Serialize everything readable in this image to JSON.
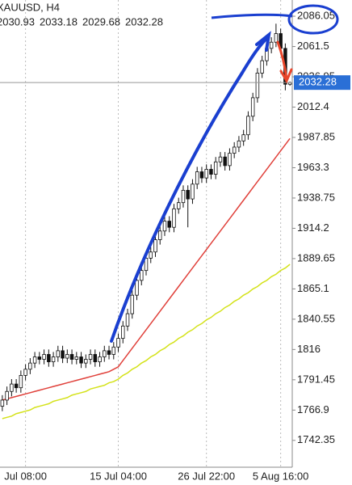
{
  "chart_data": {
    "type": "candlestick",
    "title": "XAUUSD, H4",
    "categories": [
      null,
      null,
      null,
      null,
      null,
      "Jul 08:00",
      null,
      null,
      null,
      null,
      null,
      null,
      null,
      null,
      null,
      null,
      null,
      null,
      null,
      null,
      null,
      null,
      null,
      null,
      null,
      "15 Jul 04:00",
      null,
      null,
      null,
      null,
      null,
      null,
      null,
      null,
      null,
      null,
      null,
      null,
      null,
      null,
      null,
      null,
      null,
      null,
      "26 Jul 22:00",
      null,
      null,
      null,
      null,
      null,
      null,
      null,
      null,
      null,
      null,
      null,
      null,
      null,
      null,
      null,
      "5 Aug 16:00",
      null,
      null
    ],
    "open": [
      1770,
      1775,
      1782,
      1788,
      1785,
      1795,
      1800,
      1805,
      1810,
      1808,
      1812,
      1806,
      1810,
      1815,
      1809,
      1812,
      1808,
      1810,
      1805,
      1808,
      1812,
      1806,
      1810,
      1815,
      1812,
      1818,
      1825,
      1835,
      1845,
      1860,
      1872,
      1880,
      1890,
      1895,
      1905,
      1912,
      1920,
      1915,
      1930,
      1935,
      1945,
      1938,
      1950,
      1960,
      1955,
      1962,
      1958,
      1968,
      1972,
      1965,
      1975,
      1980,
      1985,
      1990,
      2005,
      2020,
      2040,
      2050,
      2060,
      2065,
      2072,
      2060,
      2030.93
    ],
    "high": [
      1779,
      1786,
      1792,
      1792,
      1799,
      1804,
      1809,
      1814,
      1814,
      1816,
      1816,
      1814,
      1819,
      1819,
      1816,
      1816,
      1814,
      1814,
      1812,
      1816,
      1816,
      1814,
      1819,
      1819,
      1822,
      1829,
      1839,
      1849,
      1864,
      1876,
      1884,
      1894,
      1899,
      1909,
      1916,
      1924,
      1924,
      1934,
      1939,
      1949,
      1949,
      1954,
      1964,
      1964,
      1966,
      1966,
      1972,
      1976,
      1976,
      1979,
      1984,
      1989,
      1994,
      2009,
      2024,
      2044,
      2054,
      2064,
      2069,
      2080,
      2076,
      2064,
      2033.18
    ],
    "low": [
      1766,
      1771,
      1778,
      1781,
      1781,
      1791,
      1796,
      1801,
      1804,
      1804,
      1802,
      1802,
      1806,
      1805,
      1805,
      1804,
      1804,
      1801,
      1801,
      1804,
      1802,
      1802,
      1806,
      1808,
      1808,
      1814,
      1821,
      1831,
      1841,
      1856,
      1868,
      1876,
      1886,
      1891,
      1901,
      1908,
      1911,
      1911,
      1926,
      1931,
      1915,
      1934,
      1946,
      1951,
      1951,
      1954,
      1954,
      1964,
      1961,
      1961,
      1971,
      1976,
      1981,
      1986,
      2001,
      2016,
      2036,
      2046,
      2056,
      2061,
      2056,
      2026,
      2029.68
    ],
    "close": [
      1775,
      1782,
      1788,
      1785,
      1795,
      1800,
      1805,
      1810,
      1808,
      1812,
      1806,
      1810,
      1815,
      1809,
      1812,
      1808,
      1810,
      1805,
      1808,
      1812,
      1806,
      1810,
      1815,
      1812,
      1818,
      1825,
      1835,
      1845,
      1860,
      1872,
      1880,
      1890,
      1895,
      1905,
      1912,
      1920,
      1915,
      1930,
      1935,
      1945,
      1938,
      1950,
      1960,
      1955,
      1962,
      1958,
      1968,
      1972,
      1965,
      1975,
      1980,
      1985,
      1990,
      2005,
      2020,
      2040,
      2050,
      2060,
      2065,
      2072,
      2060,
      2030.93,
      2032.28
    ],
    "lines": [
      {
        "color": "#d4e21a",
        "values": [
          1760,
          1761,
          1762,
          1764,
          1765,
          1766,
          1767,
          1769,
          1770,
          1771,
          1772,
          1774,
          1775,
          1776,
          1777,
          1779,
          1780,
          1781,
          1782,
          1784,
          1785,
          1786,
          1787,
          1789,
          1790,
          1792,
          1795,
          1797,
          1800,
          1802,
          1805,
          1807,
          1810,
          1812,
          1815,
          1817,
          1820,
          1822,
          1825,
          1827,
          1830,
          1832,
          1835,
          1837,
          1840,
          1842,
          1845,
          1847,
          1850,
          1852,
          1855,
          1857,
          1860,
          1862,
          1865,
          1867,
          1870,
          1872,
          1875,
          1877,
          1880,
          1882,
          1885
        ]
      },
      {
        "color": "#e0403a",
        "values": [
          1775,
          1776,
          1777,
          1778,
          1779,
          1780,
          1781,
          1782,
          1783,
          1784,
          1785,
          1786,
          1787,
          1788,
          1789,
          1790,
          1791,
          1792,
          1793,
          1794,
          1795,
          1796,
          1797,
          1798,
          1800,
          1802,
          1807,
          1812,
          1817,
          1822,
          1827,
          1832,
          1837,
          1842,
          1847,
          1852,
          1857,
          1862,
          1867,
          1872,
          1877,
          1882,
          1887,
          1892,
          1897,
          1902,
          1907,
          1912,
          1917,
          1922,
          1927,
          1932,
          1937,
          1942,
          1947,
          1952,
          1957,
          1962,
          1967,
          1972,
          1977,
          1982,
          1987
        ]
      }
    ],
    "ylim": [
      1720.6,
      2099.2
    ],
    "yticks": [
      1742.35,
      1766.9,
      1791.45,
      1816,
      1840.55,
      1865.1,
      1889.65,
      1914.2,
      1938.75,
      1963.3,
      1987.85,
      2012.4,
      2036.95,
      2061.5,
      2086.05
    ],
    "grid": true,
    "up_color": "#ffffff",
    "down_color": "#111111",
    "price_color": "#2a6fd6"
  }
}
